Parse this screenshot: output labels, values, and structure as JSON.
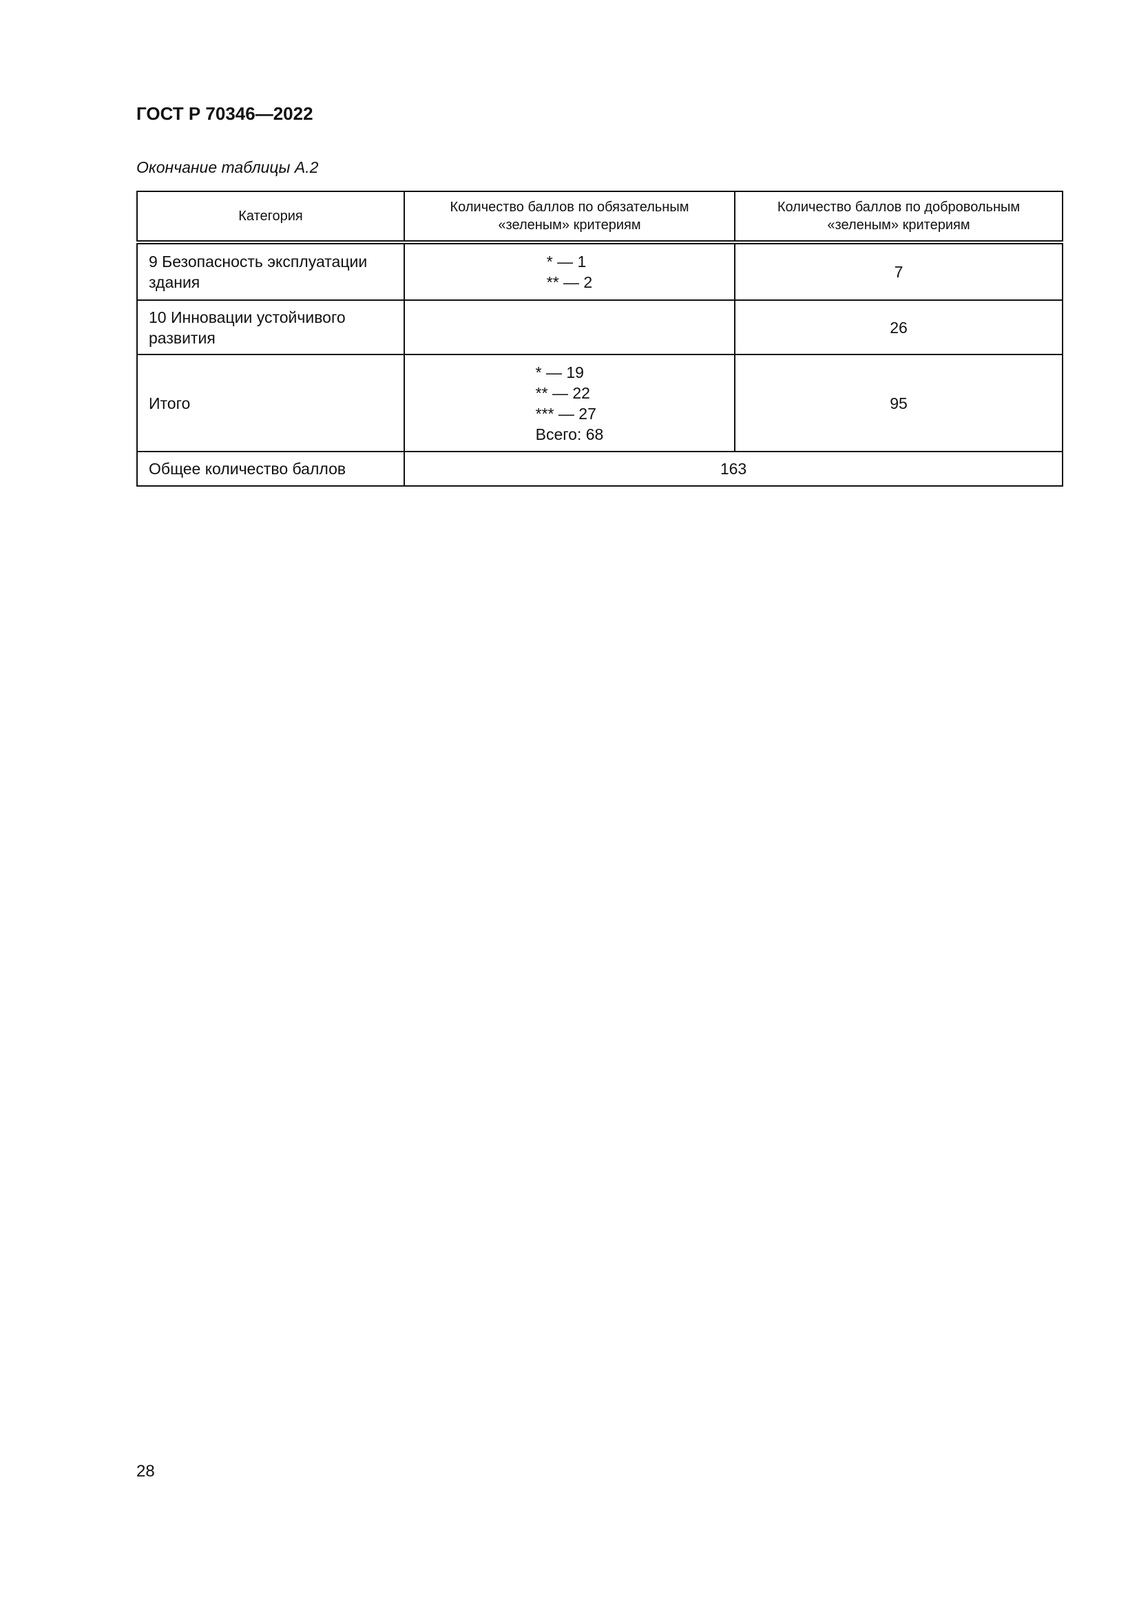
{
  "header": {
    "title": "ГОСТ Р 70346—2022"
  },
  "caption": "Окончание таблицы А.2",
  "table": {
    "columns": [
      "Категория",
      "Количество баллов по обязательным «зеленым» критериям",
      "Количество баллов по добровольным «зеленым» критериям"
    ],
    "rows": [
      {
        "category": "9 Безопасность эксплуатации здания",
        "mandatory": [
          "* — 1",
          "** — 2"
        ],
        "voluntary": "7"
      },
      {
        "category": "10 Инновации устойчивого развития",
        "mandatory": [],
        "voluntary": "26"
      },
      {
        "category": "Итого",
        "mandatory": [
          "* — 19",
          "** — 22",
          "*** — 27",
          "Всего: 68"
        ],
        "voluntary": "95"
      }
    ],
    "total": {
      "label": "Общее количество баллов",
      "value": "163"
    }
  },
  "footer": {
    "page_number": "28"
  }
}
